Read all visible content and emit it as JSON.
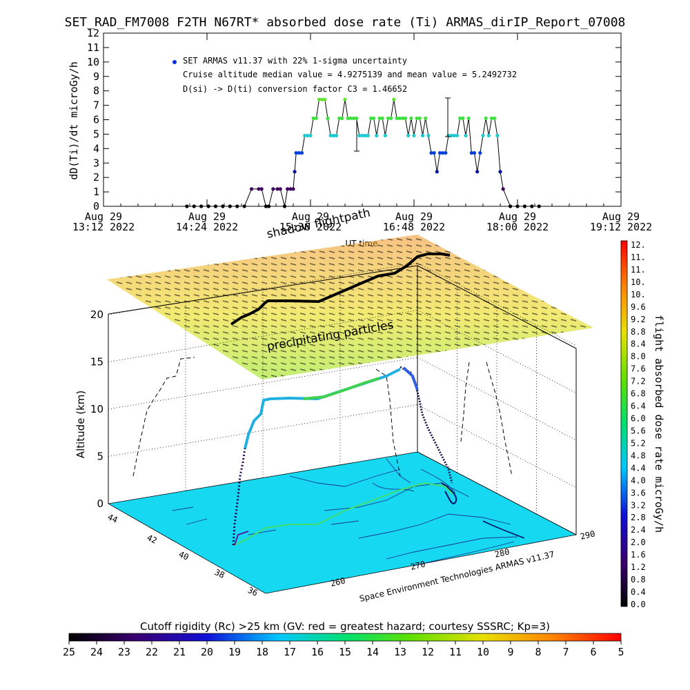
{
  "title": "SET_RAD_FM7008  F2TH N67RT* absorbed dose rate (Ti) ARMAS_dirIP_Report_07008",
  "chart_data": [
    {
      "type": "scatter",
      "ylabel": "dD(Ti)/dt microGy/h",
      "xlabel": "UT time",
      "ylim": [
        0,
        12
      ],
      "yticks": [
        "0",
        "1",
        "2",
        "3",
        "4",
        "5",
        "6",
        "7",
        "8",
        "9",
        "10",
        "11",
        "12"
      ],
      "xticks": [
        {
          "day": "Aug 29",
          "time": "13:12 2022",
          "min": 792
        },
        {
          "day": "Aug 29",
          "time": "14:24 2022",
          "min": 864
        },
        {
          "day": "Aug 29",
          "time": "15:36 2022",
          "min": 936
        },
        {
          "day": "Aug 29",
          "time": "16:48 2022",
          "min": 1008
        },
        {
          "day": "Aug 29",
          "time": "18:00 2022",
          "min": 1080
        },
        {
          "day": "Aug 29",
          "time": "19:12 2022",
          "min": 1152
        }
      ],
      "xlim_minutes": [
        792,
        1152
      ],
      "annotations": [
        "SET ARMAS v11.37 with 22% 1-sigma uncertainty",
        "Cruise altitude median value = 4.9275139 and mean value = 5.2492732",
        "D(si) -> D(ti) conversion factor C3 = 1.46652"
      ],
      "series": [
        {
          "x_minutes": [
            850,
            855,
            860,
            865,
            870,
            875,
            880,
            885,
            890,
            895,
            900,
            902,
            905,
            907,
            910,
            913,
            915,
            918,
            920,
            922,
            924,
            925,
            926,
            928,
            930,
            932,
            934,
            936,
            938,
            940,
            942,
            944,
            946,
            948,
            950,
            952,
            954,
            956,
            958,
            960,
            962,
            964,
            966,
            968,
            970,
            972,
            974,
            976,
            978,
            980,
            982,
            984,
            986,
            988,
            990,
            992,
            994,
            996,
            998,
            1000,
            1002,
            1004,
            1006,
            1008,
            1010,
            1012,
            1014,
            1016,
            1018,
            1020,
            1022,
            1024,
            1026,
            1028,
            1030,
            1032,
            1034,
            1036,
            1038,
            1040,
            1042,
            1044,
            1046,
            1048,
            1050,
            1052,
            1054,
            1056,
            1058,
            1060,
            1062,
            1064,
            1066,
            1068,
            1070,
            1075,
            1080,
            1085,
            1090,
            1095
          ],
          "y": [
            0,
            0,
            0,
            0,
            0,
            0,
            0,
            0,
            0,
            1.2,
            1.2,
            1.2,
            0,
            0,
            1.2,
            1.2,
            1.2,
            0,
            1.2,
            1.2,
            1.2,
            2.4,
            3.7,
            3.7,
            3.7,
            4.9,
            4.9,
            4.9,
            6.1,
            6.1,
            7.4,
            7.4,
            7.4,
            6.1,
            4.9,
            4.9,
            4.9,
            6.1,
            6.1,
            7.4,
            6.1,
            6.1,
            6.1,
            6.1,
            4.9,
            4.9,
            4.9,
            4.9,
            6.1,
            6.1,
            4.9,
            6.1,
            6.1,
            4.9,
            6.1,
            6.1,
            7.4,
            6.1,
            6.1,
            6.1,
            6.1,
            4.9,
            6.1,
            4.9,
            6.1,
            6.1,
            4.9,
            6.1,
            4.9,
            3.7,
            3.7,
            2.4,
            3.7,
            3.7,
            3.7,
            4.9,
            4.9,
            4.9,
            4.9,
            6.1,
            6.1,
            4.9,
            6.1,
            3.7,
            3.7,
            2.4,
            3.7,
            4.9,
            6.1,
            4.9,
            6.1,
            6.1,
            4.9,
            2.4,
            1.2,
            0,
            0,
            0,
            0,
            0
          ]
        }
      ]
    },
    {
      "type": "scatter",
      "ylabel": "Altitude (km)",
      "zticks": [
        "0",
        "5",
        "10",
        "15",
        "20"
      ],
      "lat_ticks": [
        "36",
        "38",
        "40",
        "42",
        "44"
      ],
      "lon_ticks": [
        "260",
        "270",
        "280",
        "290"
      ],
      "annotations": [
        "shadow flightpath",
        "precipitating particles"
      ],
      "credit": "Space Environment Technologies ARMAS v11.37"
    },
    {
      "type": "heatmap",
      "colorbar_label": "flight absorbed dose rate microGy/h",
      "ticks": [
        "0.0",
        "0.4",
        "0.8",
        "1.2",
        "1.6",
        "2.0",
        "2.4",
        "2.8",
        "3.2",
        "3.6",
        "4.0",
        "4.4",
        "4.8",
        "5.2",
        "5.6",
        "6.0",
        "6.4",
        "6.8",
        "7.2",
        "7.6",
        "8.0",
        "8.4",
        "8.8",
        "9.2",
        "9.6",
        "10.",
        "10.",
        "11.",
        "11.",
        "12."
      ]
    },
    {
      "type": "heatmap",
      "colorbar_label": "Cutoff rigidity (Rc) >25 km (GV: red = greatest hazard; courtesy SSSRC; Kp=3)",
      "ticks": [
        "25",
        "24",
        "23",
        "22",
        "21",
        "20",
        "19",
        "18",
        "17",
        "16",
        "15",
        "14",
        "13",
        "12",
        "11",
        "10",
        "9",
        "8",
        "7",
        "6",
        "5"
      ]
    }
  ]
}
